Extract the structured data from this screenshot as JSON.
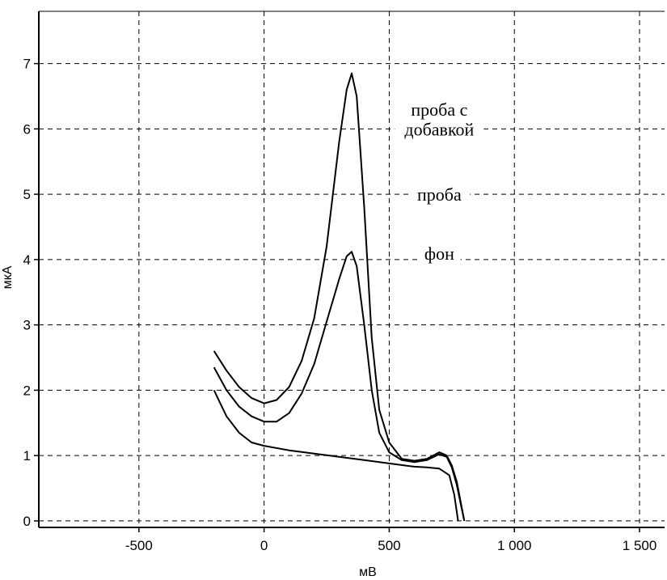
{
  "chart_data": {
    "type": "line",
    "xlabel": "мВ",
    "ylabel": "мкА",
    "xlim": [
      -900,
      1600
    ],
    "ylim": [
      -0.1,
      7.8
    ],
    "x_ticks": [
      {
        "value": -500,
        "label": "-500"
      },
      {
        "value": 0,
        "label": "0"
      },
      {
        "value": 500,
        "label": "500"
      },
      {
        "value": 1000,
        "label": "1 000"
      },
      {
        "value": 1500,
        "label": "1 500"
      }
    ],
    "y_ticks": [
      {
        "value": 0,
        "label": "0"
      },
      {
        "value": 1,
        "label": "1"
      },
      {
        "value": 2,
        "label": "2"
      },
      {
        "value": 3,
        "label": "3"
      },
      {
        "value": 4,
        "label": "4"
      },
      {
        "value": 5,
        "label": "5"
      },
      {
        "value": 6,
        "label": "6"
      },
      {
        "value": 7,
        "label": "7"
      }
    ],
    "grid": true,
    "annotations": [
      {
        "text": "проба с",
        "x": 700,
        "y": 6.2
      },
      {
        "text": "добавкой",
        "x": 700,
        "y": 5.9
      },
      {
        "text": "проба",
        "x": 700,
        "y": 4.9
      },
      {
        "text": "фон",
        "x": 700,
        "y": 4.0
      }
    ],
    "series": [
      {
        "color": "#000000",
        "x": [
          -200,
          -150,
          -100,
          -50,
          0,
          50,
          100,
          150,
          200,
          250,
          300,
          330,
          350,
          370,
          400,
          430,
          460,
          500,
          550,
          600,
          650,
          700,
          730,
          750,
          770,
          790,
          800
        ],
        "y": [
          2.6,
          2.3,
          2.05,
          1.88,
          1.8,
          1.85,
          2.05,
          2.45,
          3.1,
          4.2,
          5.8,
          6.6,
          6.85,
          6.5,
          4.8,
          2.8,
          1.7,
          1.2,
          0.95,
          0.92,
          0.95,
          1.05,
          1.0,
          0.85,
          0.6,
          0.2,
          0.0
        ]
      },
      {
        "color": "#000000",
        "x": [
          -200,
          -150,
          -100,
          -50,
          0,
          50,
          100,
          150,
          200,
          250,
          300,
          330,
          350,
          370,
          400,
          430,
          460,
          500,
          550,
          600,
          650,
          700,
          730,
          750,
          770,
          790,
          800
        ],
        "y": [
          2.35,
          2.0,
          1.75,
          1.6,
          1.52,
          1.52,
          1.65,
          1.95,
          2.4,
          3.05,
          3.7,
          4.05,
          4.12,
          3.9,
          3.0,
          2.0,
          1.35,
          1.05,
          0.93,
          0.9,
          0.93,
          1.02,
          0.98,
          0.82,
          0.55,
          0.18,
          0.0
        ]
      },
      {
        "color": "#000000",
        "x": [
          -200,
          -150,
          -100,
          -50,
          0,
          100,
          200,
          300,
          400,
          500,
          600,
          650,
          700,
          740,
          760,
          775
        ],
        "y": [
          2.0,
          1.6,
          1.35,
          1.2,
          1.15,
          1.08,
          1.03,
          0.98,
          0.93,
          0.88,
          0.83,
          0.82,
          0.8,
          0.7,
          0.4,
          0.0
        ]
      }
    ]
  }
}
